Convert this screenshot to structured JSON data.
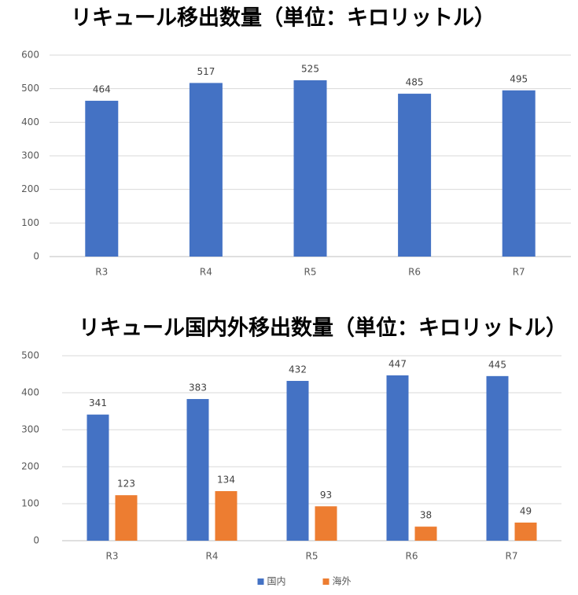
{
  "chart_data": [
    {
      "type": "bar",
      "title": "リキュール移出数量（単位：キロリットル）",
      "categories": [
        "R3",
        "R4",
        "R5",
        "R6",
        "R7"
      ],
      "values": [
        464,
        517,
        525,
        485,
        495
      ],
      "color": "#4472c4",
      "ylim": [
        0,
        600
      ],
      "yticks": [
        0,
        100,
        200,
        300,
        400,
        500,
        600
      ],
      "grid": true
    },
    {
      "type": "grouped-bar",
      "title": "リキュール国内外移出数量（単位：キロリットル）",
      "categories": [
        "R3",
        "R4",
        "R5",
        "R6",
        "R7"
      ],
      "series": [
        {
          "name": "国内",
          "color": "#4472c4",
          "values": [
            341,
            383,
            432,
            447,
            445
          ]
        },
        {
          "name": "海外",
          "color": "#ed7d31",
          "values": [
            123,
            134,
            93,
            38,
            49
          ]
        }
      ],
      "ylim": [
        0,
        500
      ],
      "yticks": [
        0,
        100,
        200,
        300,
        400,
        500
      ],
      "grid": true,
      "legend": "bottom"
    }
  ]
}
